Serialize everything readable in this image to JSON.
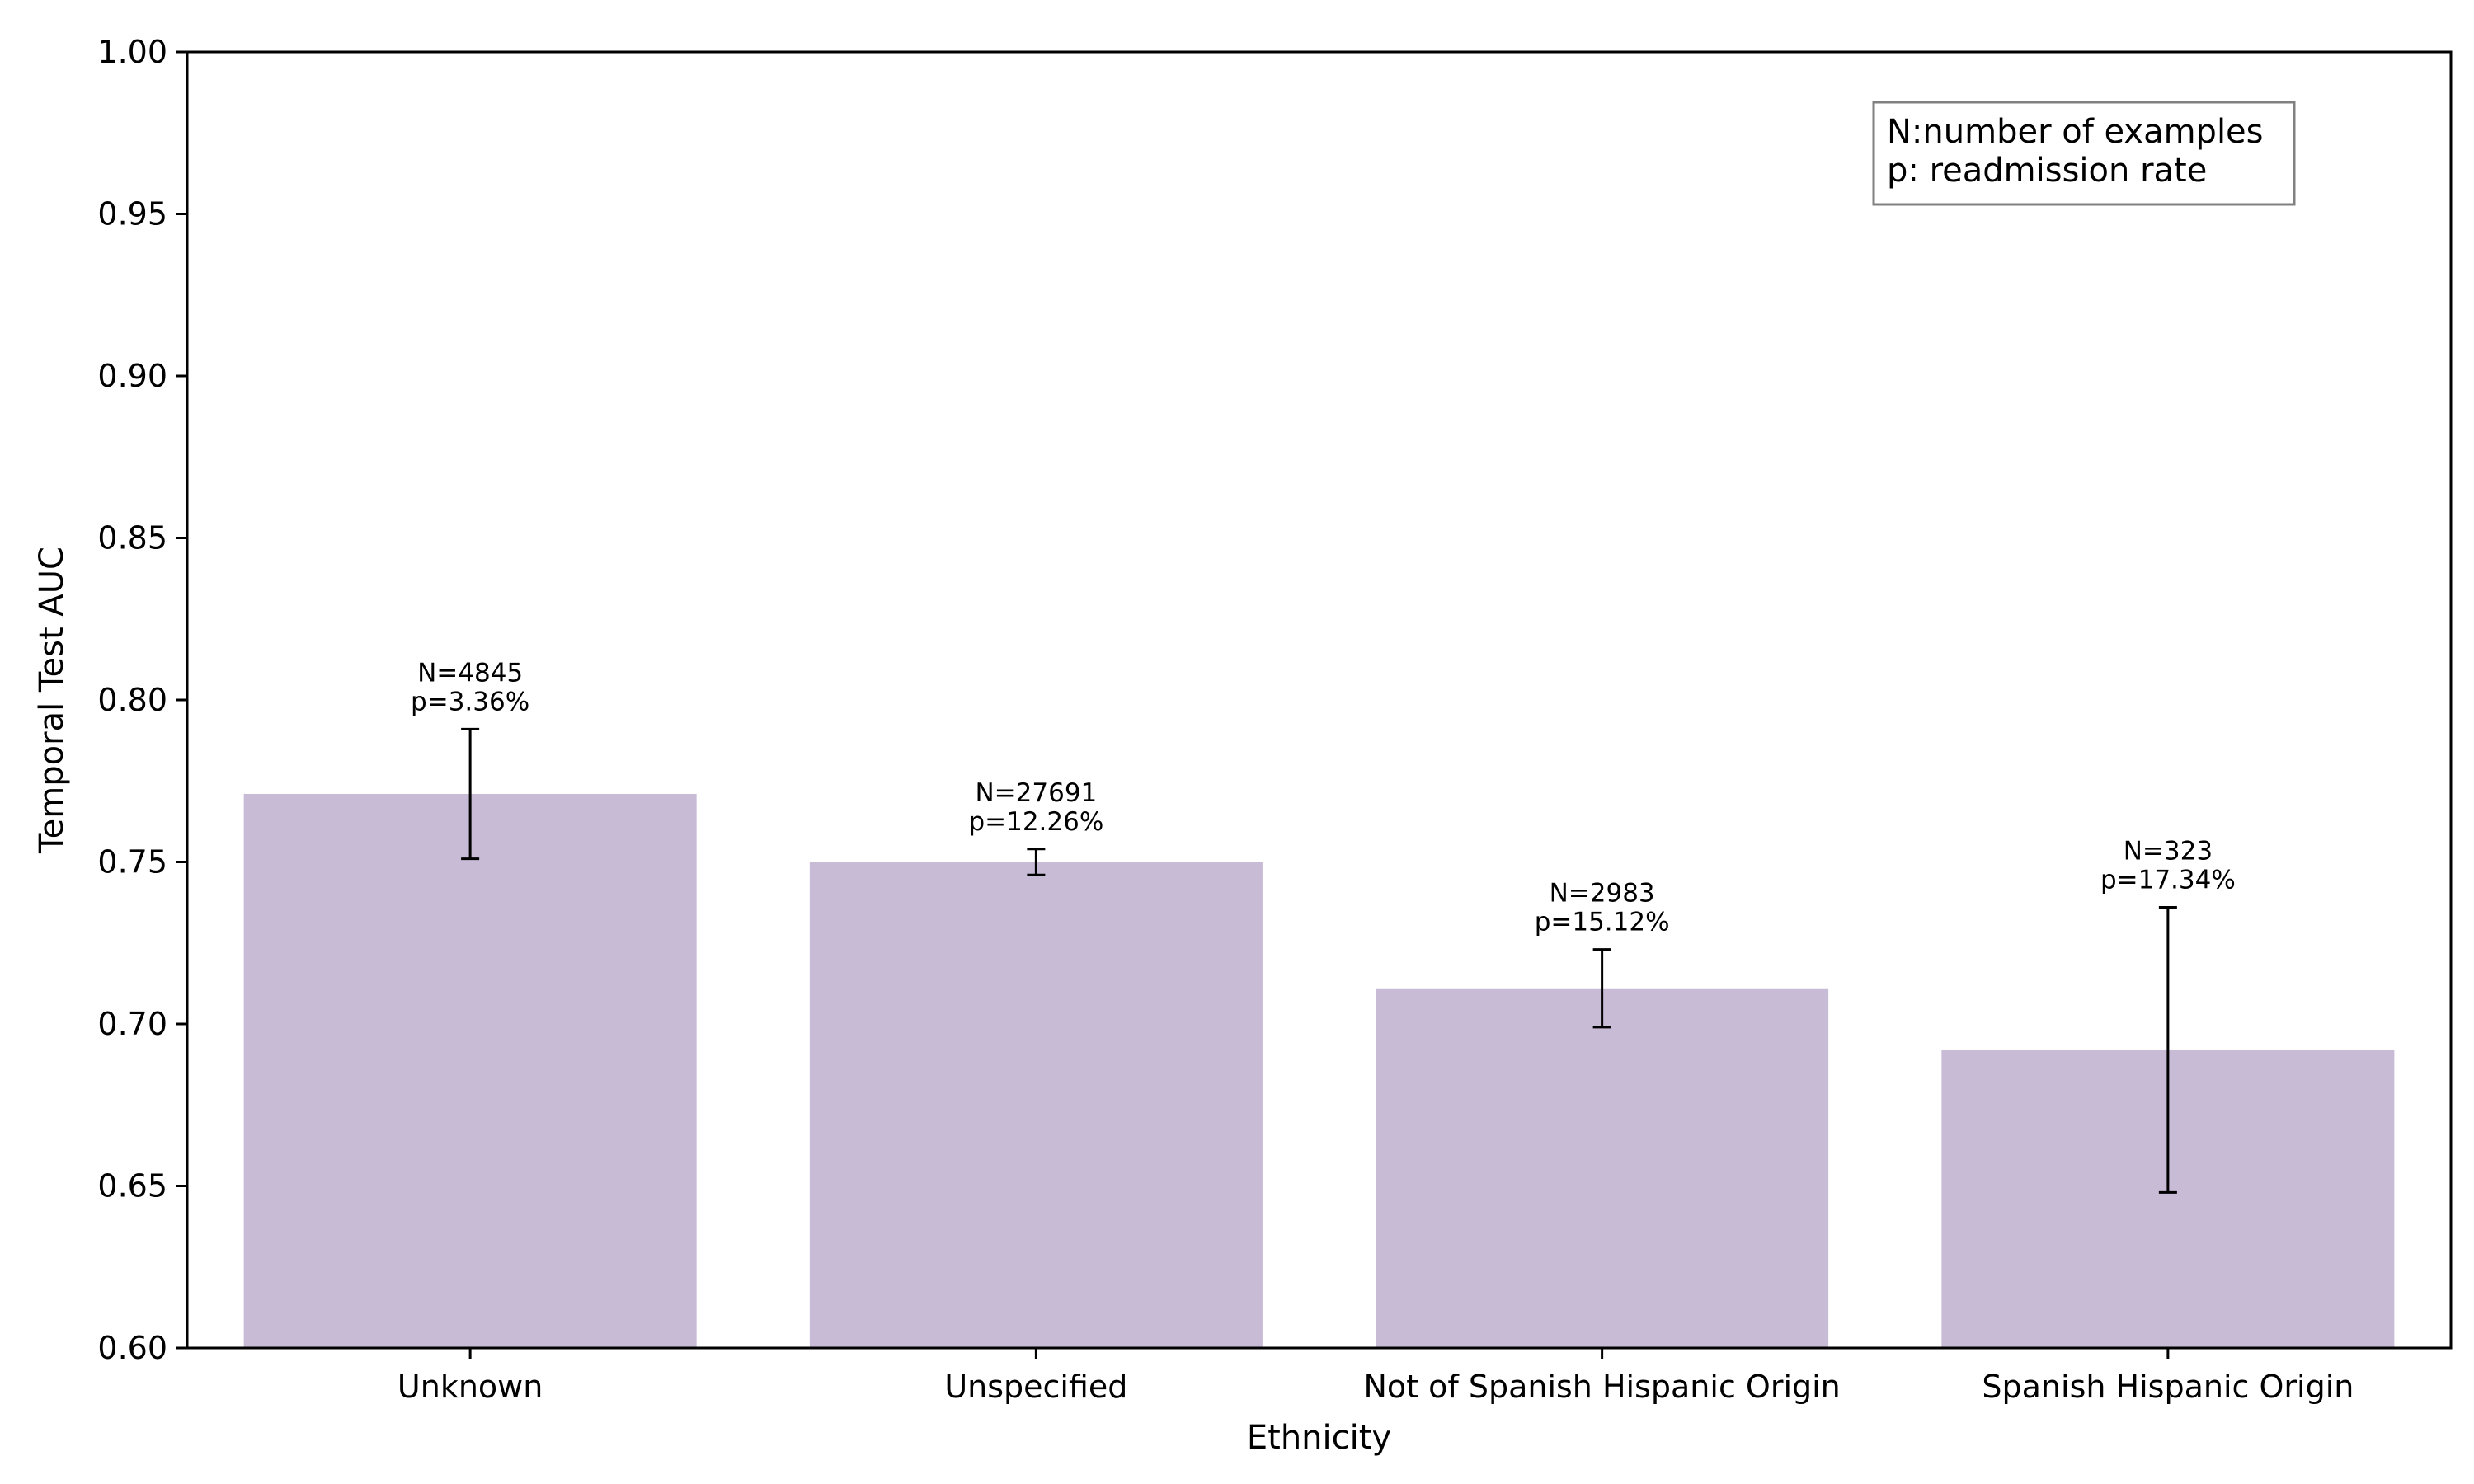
{
  "chart_data": {
    "type": "bar",
    "title": "",
    "xlabel": "Ethnicity",
    "ylabel": "Temporal Test AUC",
    "ylim": [
      0.6,
      1.0
    ],
    "yticks": [
      "0.60",
      "0.65",
      "0.70",
      "0.75",
      "0.80",
      "0.85",
      "0.90",
      "0.95",
      "1.00"
    ],
    "categories": [
      "Unknown",
      "Unspecified",
      "Not of Spanish Hispanic Origin",
      "Spanish Hispanic Origin"
    ],
    "values": [
      0.771,
      0.75,
      0.711,
      0.692
    ],
    "error_low": [
      0.751,
      0.746,
      0.699,
      0.648
    ],
    "error_high": [
      0.791,
      0.754,
      0.723,
      0.736
    ],
    "annotations": [
      {
        "n": "N=4845",
        "p": "p=3.36%"
      },
      {
        "n": "N=27691",
        "p": "p=12.26%"
      },
      {
        "n": "N=2983",
        "p": "p=15.12%"
      },
      {
        "n": "N=323",
        "p": "p=17.34%"
      }
    ],
    "legend": {
      "position": "top-right",
      "lines": [
        "N:number of examples",
        "p: readmission rate"
      ]
    },
    "colors": {
      "bar": "#c8bbd6",
      "error": "#000000",
      "axis": "#000000",
      "legend_border": "#808080"
    }
  }
}
